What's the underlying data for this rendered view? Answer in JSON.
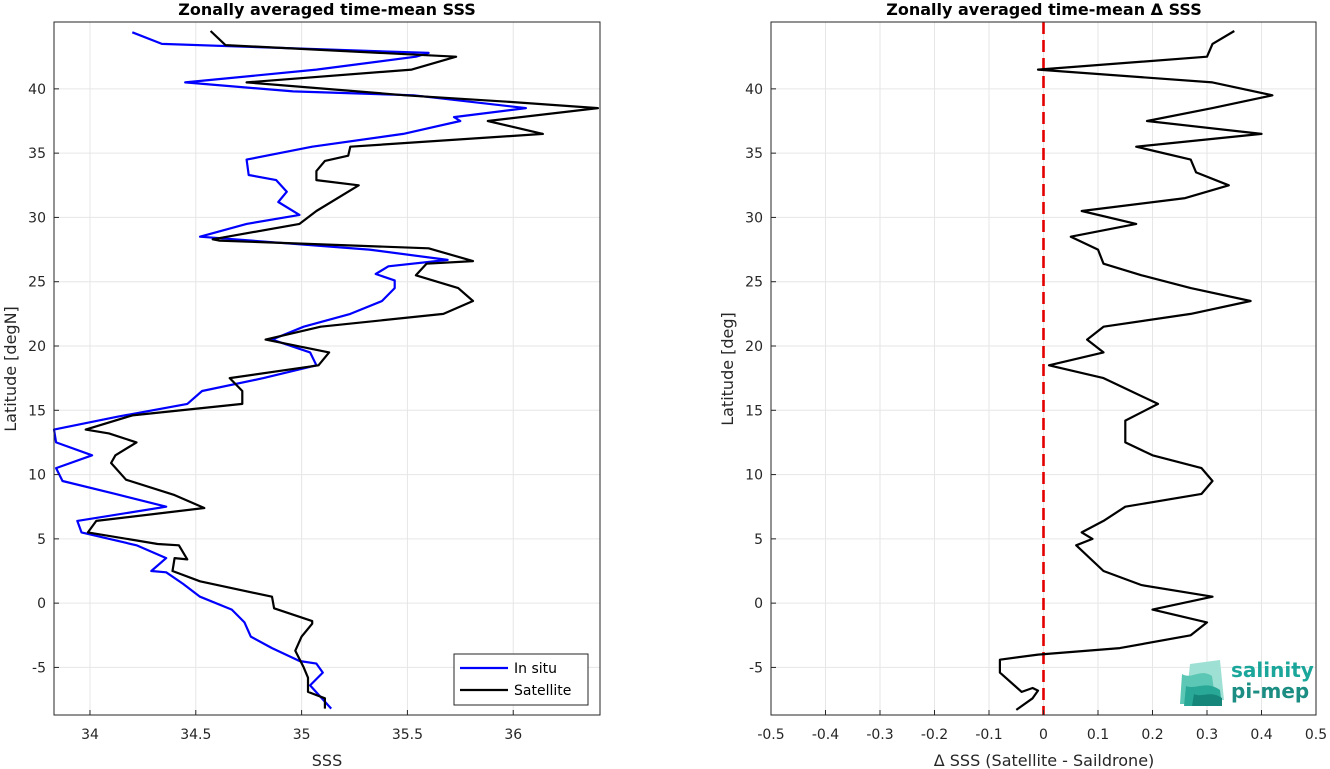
{
  "chart_data": [
    {
      "type": "line",
      "title": "Zonally averaged time-mean SSS",
      "xlabel": "SSS",
      "ylabel": "Latitude [degN]",
      "xlim": [
        33.83,
        36.41
      ],
      "ylim": [
        -8.7,
        45.2
      ],
      "xticks": [
        34,
        34.5,
        35,
        35.5,
        36
      ],
      "xtick_labels": [
        "34",
        "34.5",
        "35",
        "35.5",
        "36"
      ],
      "yticks": [
        -5,
        0,
        5,
        10,
        15,
        20,
        25,
        30,
        35,
        40
      ],
      "ytick_labels": [
        "-5",
        "0",
        "5",
        "10",
        "15",
        "20",
        "25",
        "30",
        "35",
        "40"
      ],
      "grid": true,
      "legend_position": "bottom-right",
      "legend": [
        "In situ",
        "Satellite"
      ],
      "series": [
        {
          "name": "In situ",
          "color": "#0000ff",
          "points": [
            [
              35.14,
              -8.2
            ],
            [
              35.04,
              -6.4
            ],
            [
              35.1,
              -5.4
            ],
            [
              35.07,
              -4.7
            ],
            [
              34.99,
              -4.5
            ],
            [
              34.86,
              -3.5
            ],
            [
              34.76,
              -2.6
            ],
            [
              34.73,
              -1.5
            ],
            [
              34.67,
              -0.5
            ],
            [
              34.52,
              0.5
            ],
            [
              34.44,
              1.5
            ],
            [
              34.36,
              2.4
            ],
            [
              34.29,
              2.5
            ],
            [
              34.36,
              3.5
            ],
            [
              34.22,
              4.5
            ],
            [
              33.96,
              5.5
            ],
            [
              33.94,
              6.4
            ],
            [
              34.36,
              7.5
            ],
            [
              34.12,
              8.5
            ],
            [
              33.87,
              9.5
            ],
            [
              33.84,
              10.5
            ],
            [
              34.01,
              11.5
            ],
            [
              33.84,
              12.5
            ],
            [
              33.83,
              13.5
            ],
            [
              34.13,
              14.5
            ],
            [
              34.46,
              15.5
            ],
            [
              34.53,
              16.5
            ],
            [
              34.82,
              17.5
            ],
            [
              35.07,
              18.5
            ],
            [
              35.04,
              19.5
            ],
            [
              34.86,
              20.5
            ],
            [
              35.01,
              21.5
            ],
            [
              35.23,
              22.5
            ],
            [
              35.38,
              23.5
            ],
            [
              35.44,
              24.5
            ],
            [
              35.44,
              25.1
            ],
            [
              35.35,
              25.6
            ],
            [
              35.41,
              26.2
            ],
            [
              35.69,
              26.7
            ],
            [
              35.32,
              27.5
            ],
            [
              34.52,
              28.5
            ],
            [
              34.74,
              29.5
            ],
            [
              34.99,
              30.2
            ],
            [
              34.89,
              31.2
            ],
            [
              34.93,
              32
            ],
            [
              34.88,
              32.9
            ],
            [
              34.75,
              33.3
            ],
            [
              34.74,
              34.5
            ],
            [
              35.05,
              35.5
            ],
            [
              35.48,
              36.5
            ],
            [
              35.75,
              37.5
            ],
            [
              35.72,
              37.8
            ],
            [
              36.06,
              38.5
            ],
            [
              35.53,
              39.5
            ],
            [
              34.96,
              39.8
            ],
            [
              34.45,
              40.5
            ],
            [
              35.07,
              41.5
            ],
            [
              35.54,
              42.5
            ],
            [
              35.6,
              42.8
            ],
            [
              34.34,
              43.5
            ],
            [
              34.2,
              44.4
            ]
          ]
        },
        {
          "name": "Satellite",
          "color": "#000000",
          "points": [
            [
              35.11,
              -8.2
            ],
            [
              35.11,
              -7.4
            ],
            [
              35.03,
              -6.9
            ],
            [
              35.03,
              -5.8
            ],
            [
              35.01,
              -5
            ],
            [
              34.97,
              -3.7
            ],
            [
              35.0,
              -2.6
            ],
            [
              35.05,
              -1.6
            ],
            [
              35.05,
              -1.4
            ],
            [
              34.87,
              -0.4
            ],
            [
              34.86,
              0.5
            ],
            [
              34.52,
              1.7
            ],
            [
              34.39,
              2.5
            ],
            [
              34.4,
              3.5
            ],
            [
              34.46,
              3.4
            ],
            [
              34.42,
              4.5
            ],
            [
              34.32,
              4.6
            ],
            [
              33.99,
              5.5
            ],
            [
              34.03,
              6.4
            ],
            [
              34.54,
              7.4
            ],
            [
              34.4,
              8.4
            ],
            [
              34.17,
              9.6
            ],
            [
              34.1,
              10.9
            ],
            [
              34.12,
              11.5
            ],
            [
              34.22,
              12.5
            ],
            [
              34.09,
              13.2
            ],
            [
              33.98,
              13.5
            ],
            [
              34.2,
              14.6
            ],
            [
              34.72,
              15.5
            ],
            [
              34.72,
              16.5
            ],
            [
              34.66,
              17.5
            ],
            [
              35.08,
              18.5
            ],
            [
              35.13,
              19.5
            ],
            [
              34.83,
              20.5
            ],
            [
              35.09,
              21.5
            ],
            [
              35.67,
              22.5
            ],
            [
              35.81,
              23.5
            ],
            [
              35.74,
              24.5
            ],
            [
              35.54,
              25.5
            ],
            [
              35.59,
              26.4
            ],
            [
              35.81,
              26.6
            ],
            [
              35.6,
              27.6
            ],
            [
              34.61,
              28.2
            ],
            [
              34.58,
              28.3
            ],
            [
              34.99,
              29.5
            ],
            [
              35.07,
              30.5
            ],
            [
              35.27,
              32.5
            ],
            [
              35.07,
              32.9
            ],
            [
              35.07,
              33.6
            ],
            [
              35.11,
              34.4
            ],
            [
              35.22,
              34.8
            ],
            [
              35.23,
              35.5
            ],
            [
              36.14,
              36.5
            ],
            [
              35.88,
              37.5
            ],
            [
              36.4,
              38.5
            ],
            [
              35.97,
              39.0
            ],
            [
              35.49,
              39.5
            ],
            [
              34.74,
              40.5
            ],
            [
              35.52,
              41.5
            ],
            [
              35.73,
              42.5
            ],
            [
              34.64,
              43.4
            ],
            [
              34.57,
              44.5
            ]
          ]
        }
      ]
    },
    {
      "type": "line",
      "title": "Zonally averaged time-mean Δ SSS",
      "xlabel": "Δ SSS (Satellite - Saildrone)",
      "ylabel": "Latitude [deg]",
      "xlim": [
        -0.5,
        0.5
      ],
      "ylim": [
        -8.7,
        45.2
      ],
      "xticks": [
        -0.5,
        -0.4,
        -0.3,
        -0.2,
        -0.1,
        0,
        0.1,
        0.2,
        0.3,
        0.4,
        0.5
      ],
      "xtick_labels": [
        "-0.5",
        "-0.4",
        "-0.3",
        "-0.2",
        "-0.1",
        "0",
        "0.1",
        "0.2",
        "0.3",
        "0.4",
        "0.5"
      ],
      "yticks": [
        -5,
        0,
        5,
        10,
        15,
        20,
        25,
        30,
        35,
        40
      ],
      "ytick_labels": [
        "-5",
        "0",
        "5",
        "10",
        "15",
        "20",
        "25",
        "30",
        "35",
        "40"
      ],
      "grid": true,
      "reference_line": {
        "x": 0,
        "color": "#e50000",
        "style": "dashed"
      },
      "series": [
        {
          "color": "#000000",
          "points": [
            [
              -0.05,
              -8.3
            ],
            [
              -0.02,
              -7.4
            ],
            [
              -0.01,
              -6.8
            ],
            [
              -0.02,
              -6.6
            ],
            [
              -0.04,
              -6.9
            ],
            [
              -0.08,
              -5.4
            ],
            [
              -0.08,
              -4.4
            ],
            [
              -0.01,
              -4.0
            ],
            [
              0.14,
              -3.5
            ],
            [
              0.27,
              -2.5
            ],
            [
              0.3,
              -1.5
            ],
            [
              0.2,
              -0.5
            ],
            [
              0.31,
              0.5
            ],
            [
              0.18,
              1.4
            ],
            [
              0.11,
              2.5
            ],
            [
              0.06,
              4.5
            ],
            [
              0.09,
              5.0
            ],
            [
              0.07,
              5.5
            ],
            [
              0.11,
              6.4
            ],
            [
              0.15,
              7.5
            ],
            [
              0.29,
              8.5
            ],
            [
              0.31,
              9.5
            ],
            [
              0.29,
              10.5
            ],
            [
              0.2,
              11.5
            ],
            [
              0.15,
              12.5
            ],
            [
              0.15,
              13.5
            ],
            [
              0.15,
              14.2
            ],
            [
              0.21,
              15.5
            ],
            [
              0.16,
              16.5
            ],
            [
              0.11,
              17.5
            ],
            [
              0.01,
              18.5
            ],
            [
              0.11,
              19.5
            ],
            [
              0.08,
              20.5
            ],
            [
              0.11,
              21.5
            ],
            [
              0.27,
              22.5
            ],
            [
              0.38,
              23.5
            ],
            [
              0.27,
              24.5
            ],
            [
              0.18,
              25.5
            ],
            [
              0.11,
              26.4
            ],
            [
              0.1,
              27.5
            ],
            [
              0.05,
              28.5
            ],
            [
              0.17,
              29.5
            ],
            [
              0.07,
              30.5
            ],
            [
              0.26,
              31.5
            ],
            [
              0.34,
              32.5
            ],
            [
              0.28,
              33.5
            ],
            [
              0.27,
              34.5
            ],
            [
              0.17,
              35.5
            ],
            [
              0.4,
              36.5
            ],
            [
              0.19,
              37.5
            ],
            [
              0.31,
              38.5
            ],
            [
              0.42,
              39.5
            ],
            [
              0.31,
              40.5
            ],
            [
              -0.01,
              41.5
            ],
            [
              0.3,
              42.5
            ],
            [
              0.31,
              43.5
            ],
            [
              0.35,
              44.5
            ]
          ]
        }
      ]
    }
  ],
  "logo": {
    "line1": "salinity",
    "line2": "pi-mep",
    "color": "#1aa69a"
  }
}
